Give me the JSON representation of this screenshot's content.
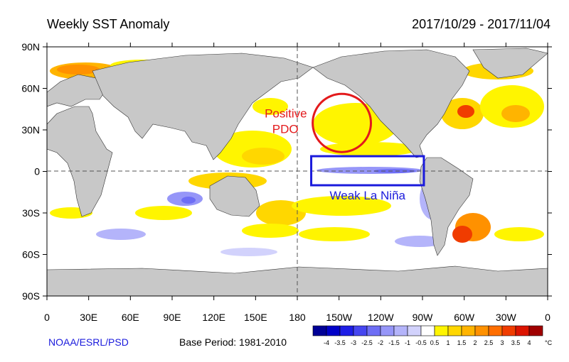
{
  "header": {
    "title": "Weekly SST Anomaly",
    "date_range": "2017/10/29 - 2017/11/04"
  },
  "axes": {
    "lat_ticks": [
      {
        "value": 90,
        "label": "90N"
      },
      {
        "value": 60,
        "label": "60N"
      },
      {
        "value": 30,
        "label": "30N"
      },
      {
        "value": 0,
        "label": "0"
      },
      {
        "value": -30,
        "label": "30S"
      },
      {
        "value": -60,
        "label": "60S"
      },
      {
        "value": -90,
        "label": "90S"
      }
    ],
    "lon_ticks": [
      {
        "value": 0,
        "label": "0"
      },
      {
        "value": 30,
        "label": "30E"
      },
      {
        "value": 60,
        "label": "60E"
      },
      {
        "value": 90,
        "label": "90E"
      },
      {
        "value": 120,
        "label": "120E"
      },
      {
        "value": 150,
        "label": "150E"
      },
      {
        "value": 180,
        "label": "180"
      },
      {
        "value": 210,
        "label": "150W"
      },
      {
        "value": 240,
        "label": "120W"
      },
      {
        "value": 270,
        "label": "90W"
      },
      {
        "value": 300,
        "label": "60W"
      },
      {
        "value": 330,
        "label": "30W"
      },
      {
        "value": 360,
        "label": "0"
      }
    ]
  },
  "annotations": {
    "pdo_label_line1": "Positive",
    "pdo_label_line2": "PDO",
    "pdo_circle_center": {
      "lon": 212,
      "lat": 35
    },
    "pdo_circle_radius_deg": 21,
    "nino_label": "Weak La Niña",
    "nino_box": {
      "lon_min": 190,
      "lon_max": 271,
      "lat_min": -10,
      "lat_max": 11
    }
  },
  "colors": {
    "land": "#c8c8c8",
    "annotation_red": "#e31a1c",
    "annotation_blue": "#1a1adc"
  },
  "colorbar": {
    "unit": "°C",
    "labels": [
      "-4",
      "-3.5",
      "-3",
      "-2.5",
      "-2",
      "-1.5",
      "-1",
      "-0.5",
      "0.5",
      "1",
      "1.5",
      "2",
      "2.5",
      "3",
      "3.5",
      "4"
    ],
    "colors": [
      "#000096",
      "#0000c8",
      "#1e1ee6",
      "#4646f0",
      "#6e6ef5",
      "#9696f8",
      "#b4b4fa",
      "#d2d2fc",
      "#ffffff",
      "#fff500",
      "#ffd700",
      "#ffb400",
      "#ff9100",
      "#ff6e00",
      "#f03c00",
      "#dc1400",
      "#a00000"
    ]
  },
  "footer": {
    "organization": "NOAA/ESRL/PSD",
    "base_period": "Base Period: 1981-2010"
  }
}
